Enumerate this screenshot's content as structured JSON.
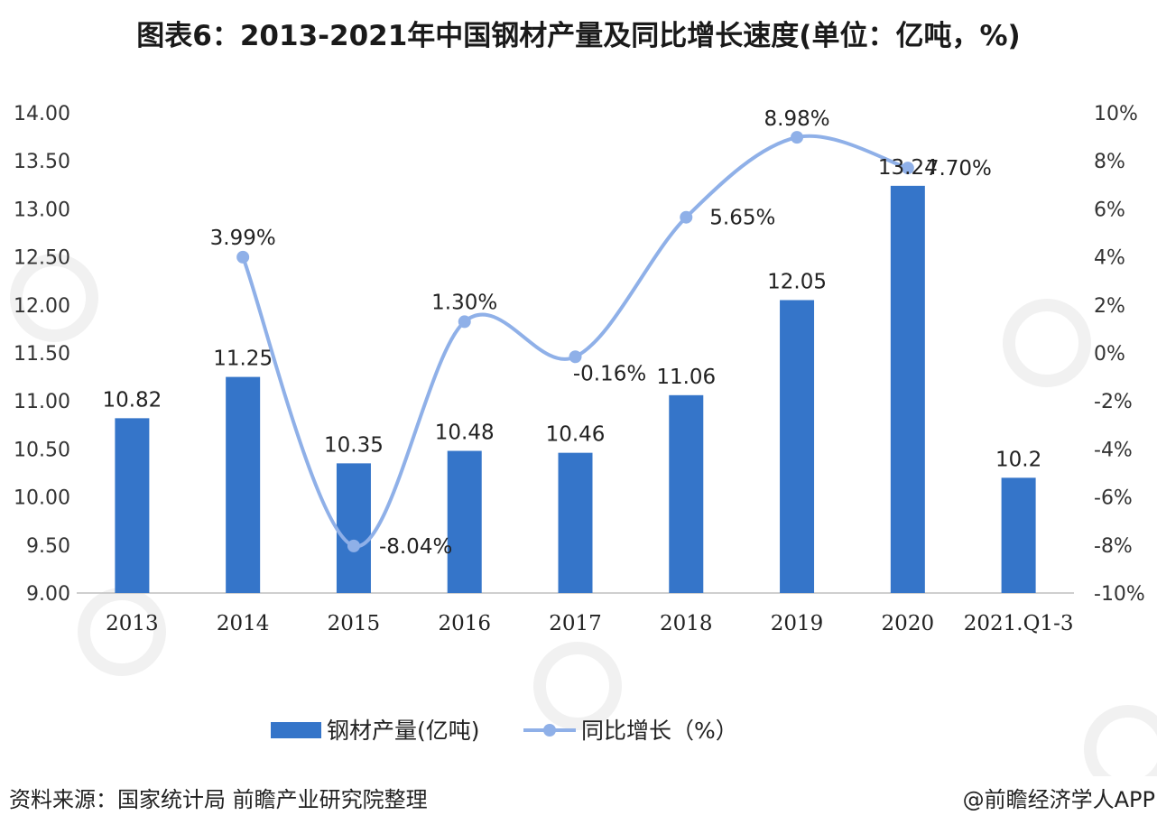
{
  "title": "图表6：2013-2021年中国钢材产量及同比增长速度(单位：亿吨，%)",
  "source": "资料来源：国家统计局 前瞻产业研究院整理",
  "credit": "@前瞻经济学人APP",
  "colors": {
    "bar": "#3575C9",
    "line": "#8FB0E8",
    "axis": "#BFBFBF"
  },
  "chart_data": {
    "type": "bar+line",
    "categories": [
      "2013",
      "2014",
      "2015",
      "2016",
      "2017",
      "2018",
      "2019",
      "2020",
      "2021.Q1-3"
    ],
    "series": [
      {
        "name": "钢材产量(亿吨)",
        "type": "bar",
        "axis": "left",
        "values": [
          10.82,
          11.25,
          10.35,
          10.48,
          10.46,
          11.06,
          12.05,
          13.24,
          10.2
        ],
        "labels": [
          "10.82",
          "11.25",
          "10.35",
          "10.48",
          "10.46",
          "11.06",
          "12.05",
          "13.24",
          "10.2"
        ]
      },
      {
        "name": "同比增长（%）",
        "type": "line",
        "axis": "right",
        "smooth": true,
        "values": [
          null,
          3.99,
          -8.04,
          1.3,
          -0.16,
          5.65,
          8.98,
          7.7,
          null
        ],
        "labels": [
          null,
          "3.99%",
          "-8.04%",
          "1.30%",
          "-0.16%",
          "5.65%",
          "8.98%",
          "7.70%",
          null
        ]
      }
    ],
    "ylim_left": [
      9.0,
      14.0
    ],
    "yticks_left": [
      "14.00",
      "13.50",
      "13.00",
      "12.50",
      "12.00",
      "11.50",
      "11.00",
      "10.50",
      "10.00",
      "9.50",
      "9.00"
    ],
    "ylim_right": [
      -10,
      10
    ],
    "yticks_right": [
      "10%",
      "8%",
      "6%",
      "4%",
      "2%",
      "0%",
      "-2%",
      "-4%",
      "-6%",
      "-8%",
      "-10%"
    ],
    "grid": false,
    "legend_position": "bottom"
  }
}
